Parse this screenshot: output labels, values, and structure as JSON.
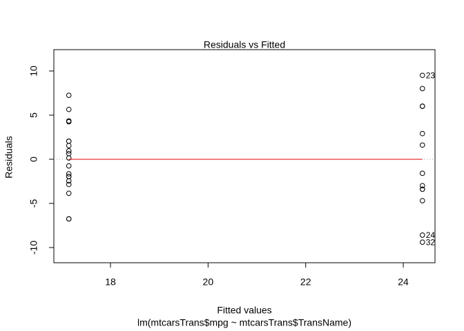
{
  "chart_data": {
    "type": "scatter",
    "title": "Residuals vs Fitted",
    "x_label": "Fitted values",
    "subtitle": "lm(mtcarsTrans$mpg ~ mtcarsTrans$TransName)",
    "y_label": "Residuals",
    "xlim": [
      16.84,
      24.65
    ],
    "ylim": [
      -11.72,
      12.42
    ],
    "xticks": [
      18,
      20,
      22,
      24
    ],
    "yticks": [
      -10,
      -5,
      0,
      5,
      10
    ],
    "reference_line": 0,
    "series": [
      {
        "name": "residuals",
        "color": "#000000",
        "x": [
          17.147,
          17.147,
          17.147,
          17.147,
          17.147,
          17.147,
          17.147,
          17.147,
          17.147,
          17.147,
          17.147,
          17.147,
          17.147,
          17.147,
          17.147,
          17.147,
          17.147,
          17.147,
          17.147,
          24.392,
          24.392,
          24.392,
          24.392,
          24.392,
          24.392,
          24.392,
          24.392,
          24.392,
          24.392,
          24.392,
          24.392,
          24.392
        ],
        "values": [
          4.25,
          1.55,
          0.95,
          -2.85,
          7.25,
          5.65,
          2.05,
          0.65,
          -0.75,
          0.15,
          -1.95,
          -6.75,
          -6.75,
          -2.45,
          4.35,
          -1.65,
          -1.95,
          -3.85,
          2.05,
          -3.39,
          -3.39,
          -1.59,
          8.01,
          6.01,
          9.51,
          2.91,
          1.61,
          6.01,
          -8.59,
          -4.69,
          -9.39,
          -2.99
        ]
      },
      {
        "name": "smoother",
        "color": "#e00000",
        "x": [
          17.147,
          24.392
        ],
        "values": [
          0,
          0
        ]
      }
    ],
    "annotations": [
      {
        "text": "23",
        "x": 24.392,
        "y": 9.51
      },
      {
        "text": "24",
        "x": 24.392,
        "y": -8.59
      },
      {
        "text": "32",
        "x": 24.392,
        "y": -9.39
      }
    ]
  }
}
